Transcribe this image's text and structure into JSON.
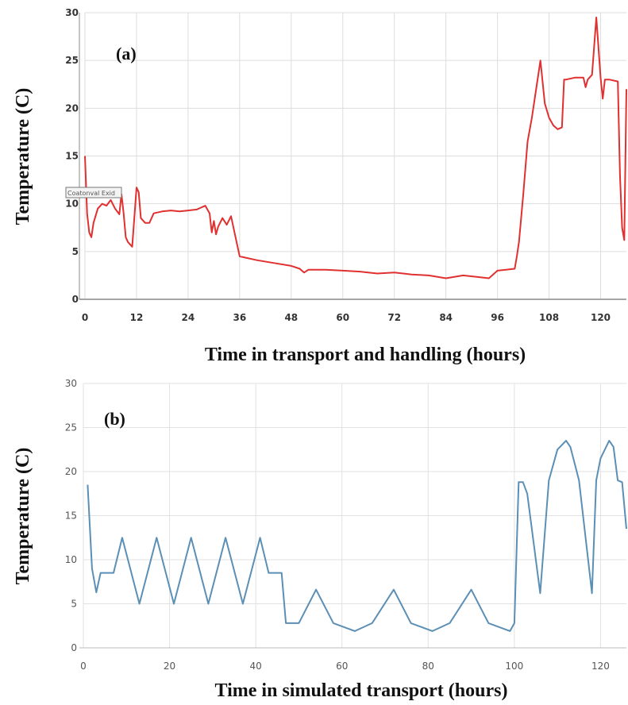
{
  "chart_data": [
    {
      "type": "line",
      "panel_label": "(a)",
      "xlabel": "Time in transport and handling (hours)",
      "ylabel": "Temperature (C)",
      "xlim": [
        0,
        126
      ],
      "ylim": [
        0,
        30
      ],
      "xticks": [
        0,
        12,
        24,
        36,
        48,
        60,
        72,
        84,
        96,
        108,
        120
      ],
      "yticks": [
        0,
        5,
        10,
        15,
        20,
        25,
        30
      ],
      "grid": true,
      "color": "#e03030",
      "overlay_label": "Coatonval Exid",
      "x": [
        0,
        0.5,
        1,
        1.5,
        2,
        3,
        4,
        5,
        6,
        7,
        8,
        8.5,
        9,
        9.5,
        10,
        11,
        12,
        12.5,
        13,
        14,
        15,
        16,
        18,
        20,
        22,
        24,
        26,
        27,
        28,
        29,
        29.5,
        30,
        30.5,
        31,
        32,
        33,
        34,
        35,
        36,
        37,
        40,
        44,
        48,
        50,
        51,
        52,
        56,
        60,
        64,
        68,
        72,
        76,
        80,
        84,
        88,
        92,
        94,
        96,
        100,
        100.5,
        101,
        102,
        103,
        104,
        105,
        106,
        107,
        108,
        109,
        110,
        111,
        111.5,
        112,
        114,
        116,
        116.5,
        117,
        118,
        119,
        120,
        120.5,
        121,
        122,
        124,
        124.5,
        125,
        125.5,
        126
      ],
      "y": [
        15,
        9,
        7,
        6.5,
        8,
        9.5,
        10,
        9.8,
        10.4,
        9.5,
        8.9,
        11,
        9,
        6.5,
        6,
        5.5,
        11.7,
        11.2,
        8.5,
        8,
        8,
        9,
        9.2,
        9.3,
        9.2,
        9.3,
        9.4,
        9.6,
        9.8,
        9,
        7,
        8.2,
        6.8,
        7.6,
        8.5,
        7.8,
        8.7,
        6.6,
        4.5,
        4.4,
        4.1,
        3.8,
        3.5,
        3.2,
        2.8,
        3.1,
        3.1,
        3.0,
        2.9,
        2.7,
        2.8,
        2.6,
        2.5,
        2.2,
        2.5,
        2.3,
        2.2,
        3.0,
        3.2,
        4.5,
        6,
        11,
        16.5,
        19,
        22,
        25,
        20.5,
        19,
        18.2,
        17.8,
        18,
        23,
        23,
        23.2,
        23.2,
        22.2,
        23,
        23.5,
        29.5,
        23.2,
        21,
        23,
        23,
        22.8,
        13,
        7.5,
        6.2,
        22
      ]
    },
    {
      "type": "line",
      "panel_label": "(b)",
      "xlabel": "Time in simulated transport (hours)",
      "ylabel": "Temperature (C)",
      "xlim": [
        0,
        126
      ],
      "ylim": [
        0,
        30
      ],
      "xticks": [
        0,
        20,
        40,
        60,
        80,
        100,
        120
      ],
      "yticks": [
        0,
        5,
        10,
        15,
        20,
        25,
        30
      ],
      "grid": true,
      "color": "#5b8fb5",
      "x": [
        1,
        2,
        3,
        4,
        7,
        9,
        13,
        17,
        21,
        25,
        29,
        33,
        37,
        41,
        43,
        46,
        47,
        50,
        54,
        58,
        63,
        67,
        72,
        76,
        81,
        85,
        90,
        94,
        99,
        100,
        101,
        102,
        103,
        106,
        108,
        110,
        112,
        113,
        115,
        118,
        119,
        120,
        122,
        123,
        124,
        125,
        126
      ],
      "y": [
        18.5,
        9,
        6.3,
        8.5,
        8.5,
        12.5,
        5,
        12.5,
        5,
        12.5,
        5,
        12.5,
        5,
        12.5,
        8.5,
        8.5,
        2.8,
        2.8,
        6.6,
        2.8,
        1.9,
        2.8,
        6.6,
        2.8,
        1.9,
        2.8,
        6.6,
        2.8,
        1.9,
        2.8,
        18.8,
        18.8,
        17.5,
        6.2,
        19,
        22.5,
        23.5,
        22.8,
        19,
        6.2,
        19,
        21.5,
        23.5,
        22.8,
        19,
        18.8,
        13.5
      ]
    }
  ]
}
